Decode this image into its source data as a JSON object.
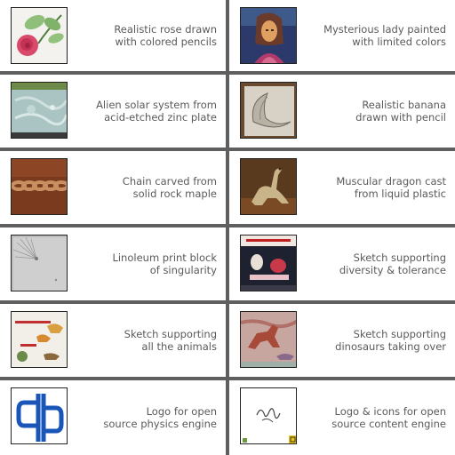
{
  "gallery": {
    "items": [
      {
        "line1": "Realistic rose drawn",
        "line2": "with colored pencils"
      },
      {
        "line1": "Mysterious lady painted",
        "line2": "with limited colors"
      },
      {
        "line1": "Alien solar system from",
        "line2": "acid-etched zinc plate"
      },
      {
        "line1": "Realistic banana",
        "line2": "drawn with pencil"
      },
      {
        "line1": "Chain carved from",
        "line2": "solid rock maple"
      },
      {
        "line1": "Muscular dragon cast",
        "line2": "from liquid plastic"
      },
      {
        "line1": "Linoleum print block",
        "line2": "of singularity"
      },
      {
        "line1": "Sketch supporting",
        "line2": "diversity & tolerance"
      },
      {
        "line1": "Sketch supporting",
        "line2": "all the animals"
      },
      {
        "line1": "Sketch supporting",
        "line2": "dinosaurs taking over"
      },
      {
        "line1": "Logo for open",
        "line2": "source physics engine"
      },
      {
        "line1": "Logo & icons for open",
        "line2": "source content engine"
      }
    ]
  },
  "colors": {
    "background": "#5f5f5f",
    "cell": "#ffffff",
    "caption_text": "#5a5a5a",
    "logo_blue": "#1a56b8"
  }
}
